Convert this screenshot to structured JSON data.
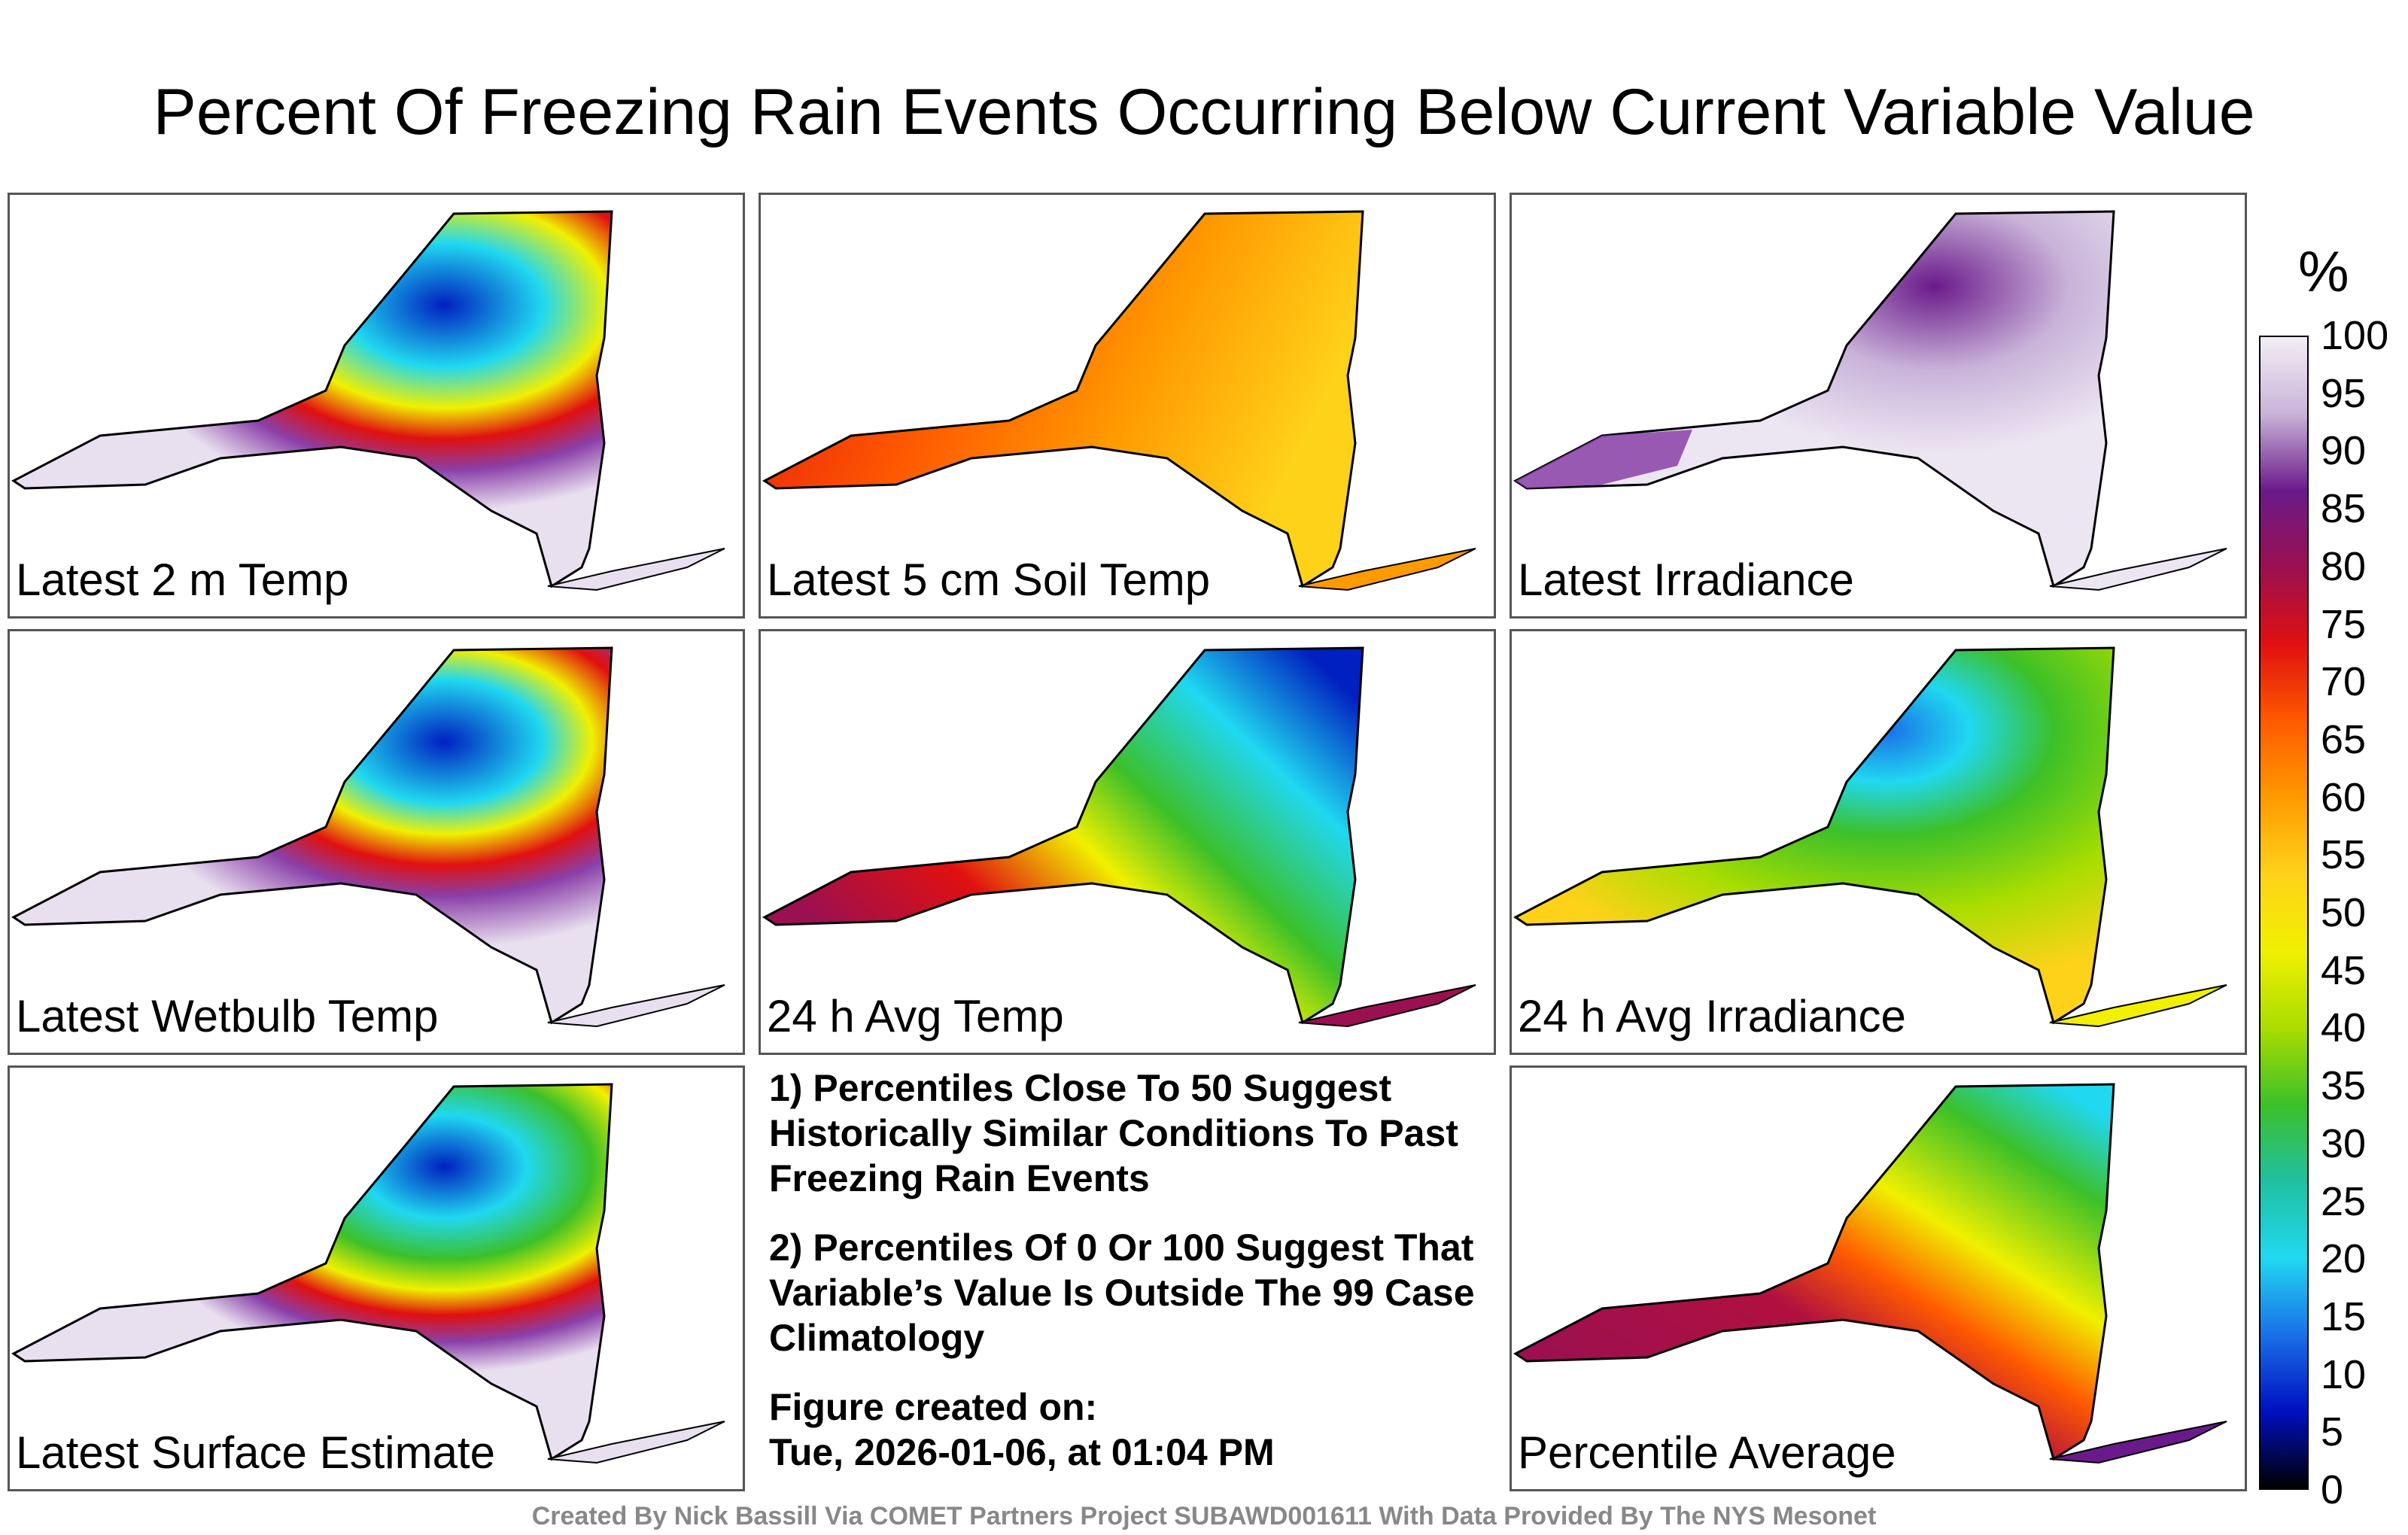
{
  "title": "Percent Of Freezing Rain Events Occurring Below Current Variable Value",
  "panels": [
    {
      "label": "Latest 2 m Temp"
    },
    {
      "label": "Latest 5 cm Soil Temp"
    },
    {
      "label": "Latest Irradiance"
    },
    {
      "label": "Latest Wetbulb Temp"
    },
    {
      "label": "24 h Avg Temp"
    },
    {
      "label": "24 h Avg Irradiance"
    },
    {
      "label": "Latest Surface Estimate"
    },
    {
      "label": "Percentile Average"
    }
  ],
  "notes": {
    "note1": "1) Percentiles Close To 50 Suggest Historically Similar Conditions To Past Freezing Rain Events",
    "note2": "2) Percentiles Of 0 Or 100 Suggest That Variable’s Value Is Outside The 99 Case Climatology",
    "created_label": "Figure created on:",
    "created_date": "Tue, 2026-01-06, at 01:04 PM"
  },
  "colorbar": {
    "unit": "%",
    "ticks": [
      "100",
      "95",
      "90",
      "85",
      "80",
      "75",
      "70",
      "65",
      "60",
      "55",
      "50",
      "45",
      "40",
      "35",
      "30",
      "25",
      "20",
      "15",
      "10",
      "5",
      "0"
    ],
    "stops": [
      "#f2eef5",
      "#c9b3d9",
      "#6a1a8a",
      "#9b1050",
      "#e01010",
      "#ff5a00",
      "#ff9a00",
      "#ffd21a",
      "#f0f000",
      "#aadd00",
      "#3cc028",
      "#20c0a0",
      "#20d8f0",
      "#1a70e8",
      "#0010c0",
      "#000000"
    ]
  },
  "footer": "Created By Nick Bassill Via COMET Partners Project SUBAWD001611 With Data Provided By The NYS Mesonet"
}
